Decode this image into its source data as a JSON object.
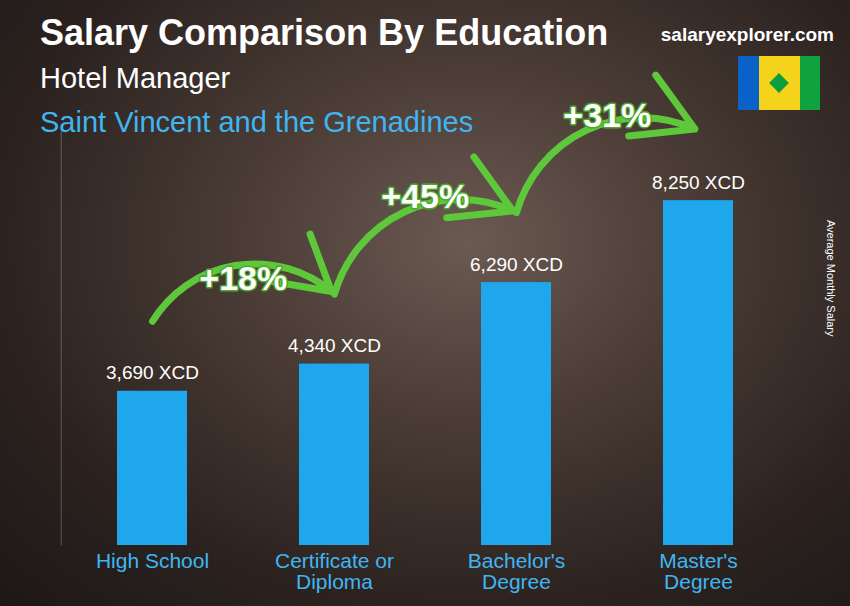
{
  "chart_data": {
    "type": "bar",
    "title": "Salary Comparison By Education",
    "subtitle": [
      "Hotel Manager",
      "Saint Vincent and the Grenadines"
    ],
    "source": "salaryexplorer.com",
    "y_label": "Average Monthly Salary",
    "categories": [
      "High School",
      "Certificate or Diploma",
      "Bachelor's Degree",
      "Master's Degree"
    ],
    "values": [
      3690,
      4340,
      6290,
      8250
    ],
    "value_labels": [
      "3,690 XCD",
      "4,340 XCD",
      "6,290 XCD",
      "8,250 XCD"
    ],
    "data_labels": true,
    "color": "#1ea7ec",
    "ylim": [
      0,
      10000
    ],
    "yticks": [],
    "tick_labels": "x",
    "grid": false,
    "annotations": [
      {
        "text": "+18%",
        "from": "High School",
        "to": "Certificate or Diploma"
      },
      {
        "text": "+45%",
        "from": "Certificate or Diploma",
        "to": "Bachelor's Degree"
      },
      {
        "text": "+31%",
        "from": "Bachelor's Degree",
        "to": "Master's Degree"
      }
    ]
  }
}
